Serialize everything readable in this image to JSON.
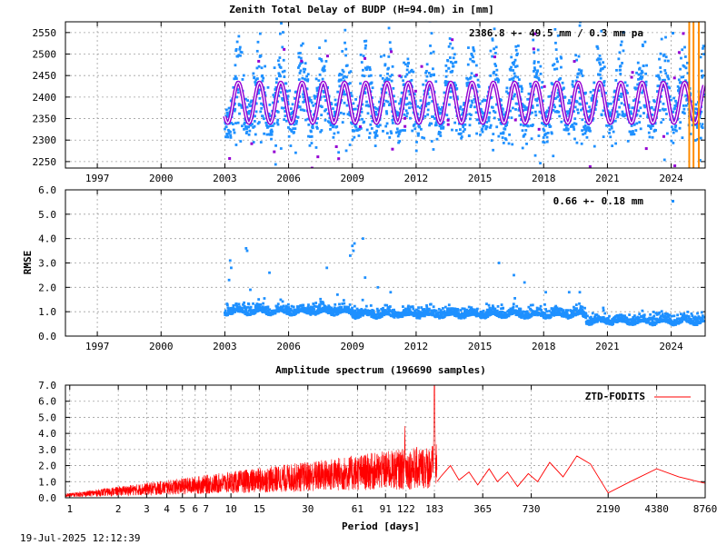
{
  "timestamp": "19-Jul-2025 12:12:39",
  "colors": {
    "ztd_points": "#1e90ff",
    "outliers": "#9400d3",
    "model_line": "#ffffff",
    "rmse_points": "#1e90ff",
    "spectrum_line": "#ff0000",
    "event_marker": "#ff8c00"
  },
  "chart_data": [
    {
      "type": "scatter",
      "title": "Zenith Total Delay of BUDP (H=94.0m) in [mm]",
      "annotation": "2386.8 +-  49.5 mm /  0.3 mm pa",
      "x_tick_labels": [
        "1997",
        "2000",
        "2003",
        "2006",
        "2009",
        "2012",
        "2015",
        "2018",
        "2021",
        "2024"
      ],
      "y_tick_labels": [
        "2250",
        "2300",
        "2350",
        "2400",
        "2450",
        "2500",
        "2550"
      ],
      "xlim": [
        1995.5,
        2025.6
      ],
      "ylim": [
        2235,
        2575
      ],
      "data_start": 2003.0,
      "data_end": 2025.55,
      "mean": 2386.8,
      "std": 49.5,
      "seasonal_amplitude": 47,
      "seasonal_peak_month": "August",
      "event_markers_years": [
        2024.85,
        2025.05,
        2025.3
      ],
      "grid": true
    },
    {
      "type": "scatter",
      "ylabel": "RMSE",
      "annotation": "0.66 +-  0.18 mm",
      "x_tick_labels": [
        "1997",
        "2000",
        "2003",
        "2006",
        "2009",
        "2012",
        "2015",
        "2018",
        "2021",
        "2024"
      ],
      "y_tick_labels": [
        "0.0",
        "1.0",
        "2.0",
        "3.0",
        "4.0",
        "5.0",
        "6.0"
      ],
      "xlim": [
        1995.5,
        2025.6
      ],
      "ylim": [
        0.0,
        6.0
      ],
      "data_start": 2003.0,
      "data_end": 2025.55,
      "mean": 0.66,
      "std": 0.18,
      "outliers": [
        [
          2003.2,
          2.3
        ],
        [
          2003.25,
          3.1
        ],
        [
          2003.3,
          2.8
        ],
        [
          2004.0,
          3.6
        ],
        [
          2004.05,
          3.5
        ],
        [
          2004.2,
          1.9
        ],
        [
          2005.1,
          2.6
        ],
        [
          2007.8,
          2.8
        ],
        [
          2008.3,
          1.7
        ],
        [
          2008.9,
          3.3
        ],
        [
          2009.0,
          3.7
        ],
        [
          2009.05,
          3.5
        ],
        [
          2009.1,
          3.8
        ],
        [
          2009.5,
          4.0
        ],
        [
          2009.6,
          2.4
        ],
        [
          2010.2,
          2.0
        ],
        [
          2010.8,
          1.8
        ],
        [
          2015.9,
          3.0
        ],
        [
          2016.6,
          2.5
        ],
        [
          2017.1,
          2.2
        ],
        [
          2018.1,
          1.8
        ],
        [
          2019.2,
          1.8
        ],
        [
          2019.7,
          1.8
        ]
      ],
      "grid": true
    },
    {
      "type": "line",
      "title": "Amplitude spectrum (196690 samples)",
      "xlabel": "Period [days]",
      "legend": "ZTD-FODITS",
      "legend_position": "top-right",
      "x_scale": "log",
      "x_tick_labels": [
        "1",
        "2",
        "3",
        "4",
        "5",
        "6",
        "7",
        "10",
        "15",
        "30",
        "61",
        "91",
        "122",
        "183",
        "365",
        "730",
        "2190",
        "4380",
        "8760"
      ],
      "x_tick_values": [
        1,
        2,
        3,
        4,
        5,
        6,
        7,
        10,
        15,
        30,
        61,
        91,
        122,
        183,
        365,
        730,
        2190,
        4380,
        8760
      ],
      "y_tick_labels": [
        "0.0",
        "1.0",
        "2.0",
        "3.0",
        "4.0",
        "5.0",
        "6.0",
        "7.0"
      ],
      "xlim": [
        0.94,
        8760
      ],
      "ylim": [
        0.0,
        7.0
      ],
      "peaks": [
        {
          "period": 183,
          "amplitude": 6.9
        },
        {
          "period": 120,
          "amplitude": 4.5
        },
        {
          "period": 2190,
          "amplitude": 0.3
        },
        {
          "period": 4380,
          "amplitude": 1.8
        },
        {
          "period": 8760,
          "amplitude": 0.9
        }
      ],
      "long_period_points": [
        [
          200,
          1.3
        ],
        [
          230,
          2.0
        ],
        [
          260,
          1.1
        ],
        [
          300,
          1.6
        ],
        [
          340,
          0.8
        ],
        [
          400,
          1.8
        ],
        [
          450,
          1.0
        ],
        [
          520,
          1.6
        ],
        [
          600,
          0.7
        ],
        [
          700,
          1.5
        ],
        [
          800,
          1.0
        ],
        [
          950,
          2.2
        ],
        [
          1150,
          1.3
        ],
        [
          1400,
          2.6
        ],
        [
          1700,
          2.1
        ],
        [
          2190,
          0.3
        ],
        [
          3000,
          1.0
        ],
        [
          4380,
          1.8
        ],
        [
          6000,
          1.3
        ],
        [
          8760,
          0.9
        ]
      ],
      "grid": true
    }
  ]
}
